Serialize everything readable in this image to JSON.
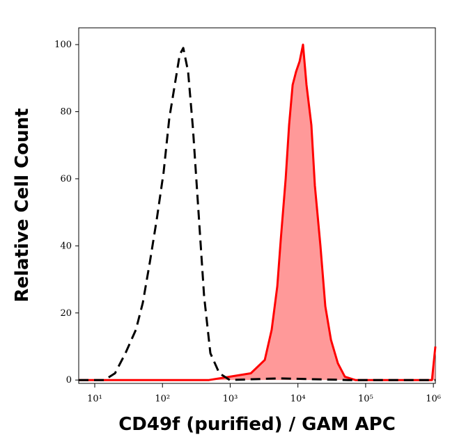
{
  "chart_data": {
    "type": "line",
    "x_label": "CD49f (purified) / GAM APC",
    "y_label": "Relative Cell Count",
    "xscale": "log",
    "xlim": [
      5.8,
      1070000
    ],
    "ylim": [
      -1,
      105
    ],
    "xticks": [
      {
        "value": 10,
        "label": "10¹"
      },
      {
        "value": 100,
        "label": "10²"
      },
      {
        "value": 1000,
        "label": "10³"
      },
      {
        "value": 10000,
        "label": "10⁴"
      },
      {
        "value": 100000,
        "label": "10⁵"
      },
      {
        "value": 1000000,
        "label": "10⁶"
      }
    ],
    "yticks": [
      0,
      20,
      40,
      60,
      80,
      100
    ],
    "series": [
      {
        "color": "#000000",
        "dash": true,
        "filled": false,
        "x": [
          5.8,
          13.9,
          19.9,
          28.4,
          40.5,
          51.3,
          65,
          82.4,
          104,
          126,
          149,
          180,
          203,
          239,
          282,
          341,
          412,
          510,
          692,
          990,
          5200,
          55600,
          1070000
        ],
        "values": [
          0,
          0,
          2,
          8,
          15,
          23,
          35,
          48,
          62,
          78,
          87,
          97,
          99,
          92,
          75,
          50,
          25,
          8,
          2,
          0,
          0.5,
          0,
          0
        ]
      },
      {
        "color": "#ff0000",
        "fill_color": "#ff9999",
        "dash": false,
        "filled": true,
        "x": [
          5.8,
          486,
          990,
          2020,
          3240,
          4100,
          4960,
          5580,
          6590,
          7410,
          8360,
          9400,
          10600,
          11900,
          13400,
          15800,
          17800,
          21500,
          25400,
          30700,
          38900,
          49300,
          70500,
          953000,
          1070000
        ],
        "values": [
          0,
          0,
          1,
          2,
          6,
          15,
          28,
          42,
          60,
          76,
          88,
          92,
          95,
          100,
          88,
          76,
          58,
          40,
          22,
          12,
          5,
          1,
          0,
          0,
          10
        ]
      }
    ]
  }
}
